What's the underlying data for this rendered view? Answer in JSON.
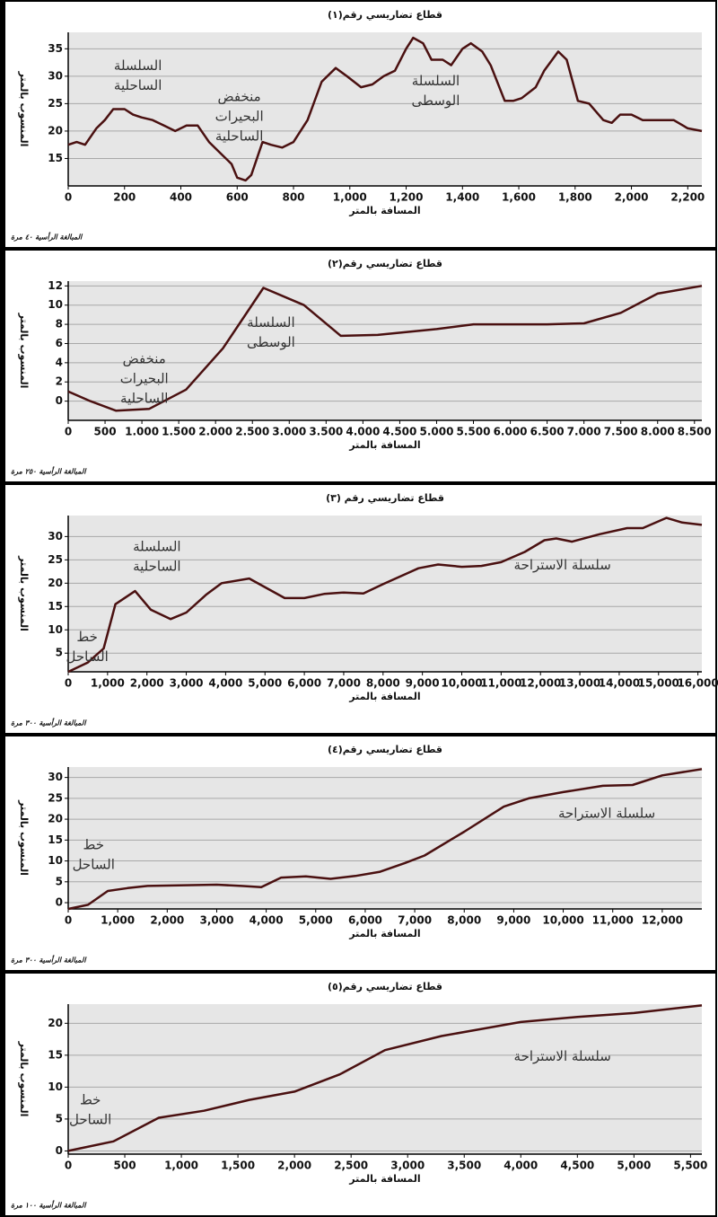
{
  "chart_data": [
    {
      "type": "line",
      "title": "قطاع تضاريسي رقم(١)",
      "y_label": "المنسوب بالمتر",
      "x_label": "المسافة بالمتر",
      "note": "المبالغة الرأسية ٤٠ مرة",
      "color": "#4a1010",
      "grid": true,
      "annotations": [
        [
          "السلسلة",
          "الساحلية"
        ],
        [
          "منخفض",
          "البحيرات",
          "الساحلية"
        ],
        [
          "السلسلة",
          "الوسطى"
        ]
      ],
      "x": [
        0,
        30,
        60,
        100,
        130,
        160,
        200,
        230,
        260,
        300,
        340,
        380,
        420,
        460,
        500,
        540,
        580,
        600,
        630,
        650,
        690,
        720,
        760,
        800,
        850,
        900,
        950,
        990,
        1040,
        1080,
        1120,
        1160,
        1200,
        1225,
        1260,
        1290,
        1330,
        1360,
        1400,
        1430,
        1470,
        1500,
        1550,
        1580,
        1610,
        1660,
        1690,
        1740,
        1770,
        1810,
        1850,
        1900,
        1930,
        1960,
        2000,
        2040,
        2100,
        2150,
        2200,
        2250
      ],
      "series": [
        {
          "values": [
            17.5,
            18,
            17.5,
            20.5,
            22,
            24,
            24,
            23,
            22.5,
            22,
            21,
            20,
            21,
            21,
            18,
            16,
            14,
            11.5,
            11,
            12,
            18,
            17.5,
            17,
            18,
            22,
            29,
            31.5,
            30,
            28,
            28.5,
            30,
            31,
            35,
            37,
            36,
            33,
            33,
            32,
            35,
            36,
            34.5,
            32,
            25.5,
            25.5,
            26,
            28,
            31,
            34.5,
            33,
            25.5,
            25,
            22,
            21.5,
            23,
            23,
            22,
            22,
            22,
            20.5,
            20
          ]
        }
      ],
      "xlim": [
        0,
        2250
      ],
      "ylim": [
        10,
        38
      ],
      "xticks": [
        0,
        200,
        400,
        600,
        800,
        {
          "value": 1000,
          "label": "1,000"
        },
        {
          "value": 1200,
          "label": "1,200"
        },
        {
          "value": 1400,
          "label": "1,400"
        },
        {
          "value": 1600,
          "label": "1,600"
        },
        {
          "value": 1800,
          "label": "1,800"
        },
        {
          "value": 2000,
          "label": "2,000"
        },
        {
          "value": 2200,
          "label": "2,200"
        }
      ],
      "yticks": [
        15,
        20,
        25,
        30,
        35
      ]
    },
    {
      "type": "line",
      "title": "قطاع تضاريسي رقم(٢)",
      "y_label": "المنسوب بالمتر",
      "x_label": "المسافة بالمتر",
      "note": "المبالغة الرأسية ٢٥٠ مرة",
      "color": "#4a1010",
      "grid": true,
      "annotations": [
        [
          "منخفض",
          "البحيرات",
          "الساحلية"
        ],
        [
          "السلسلة",
          "الوسطى"
        ]
      ],
      "x": [
        0,
        300,
        650,
        1100,
        1600,
        2100,
        2650,
        3200,
        3700,
        4200,
        5000,
        5500,
        6500,
        7000,
        7500,
        8000,
        8600
      ],
      "series": [
        {
          "values": [
            1,
            0,
            -1,
            -0.8,
            1.2,
            5.5,
            11.8,
            10,
            6.8,
            6.9,
            7.5,
            8,
            8,
            8.1,
            9.2,
            11.2,
            12
          ]
        }
      ],
      "xlim": [
        0,
        8600
      ],
      "ylim": [
        -2,
        12.5
      ],
      "xticks": [
        0,
        500,
        {
          "value": 1000,
          "label": "1.000"
        },
        {
          "value": 1500,
          "label": "1.500"
        },
        {
          "value": 2000,
          "label": "2.000"
        },
        {
          "value": 2500,
          "label": "2.500"
        },
        {
          "value": 3000,
          "label": "3.000"
        },
        {
          "value": 3500,
          "label": "3.500"
        },
        {
          "value": 4000,
          "label": "4.000"
        },
        {
          "value": 4500,
          "label": "4.500"
        },
        {
          "value": 5000,
          "label": "5.000"
        },
        {
          "value": 5500,
          "label": "5.500"
        },
        {
          "value": 6000,
          "label": "6.000"
        },
        {
          "value": 6500,
          "label": "6.500"
        },
        {
          "value": 7000,
          "label": "7.000"
        },
        {
          "value": 7500,
          "label": "7.500"
        },
        {
          "value": 8000,
          "label": "8.000"
        },
        {
          "value": 8500,
          "label": "8.500"
        }
      ],
      "yticks": [
        0,
        2,
        4,
        6,
        8,
        10,
        12
      ]
    },
    {
      "type": "line",
      "title": "قطاع تضاريسي رقم (٣)",
      "y_label": "المنسوب بالمتر",
      "x_label": "المسافة بالمتر",
      "note": "المبالغة الرأسية ٣٠٠ مرة",
      "color": "#4a1010",
      "grid": true,
      "annotations": [
        [
          "السلسلة",
          "الساحلية"
        ],
        [
          "خط",
          "الساحل"
        ],
        [
          "سلسلة الاستراحة"
        ]
      ],
      "x": [
        0,
        500,
        900,
        1200,
        1700,
        2100,
        2600,
        3000,
        3500,
        3900,
        4600,
        5500,
        6000,
        6500,
        7000,
        7500,
        8000,
        8900,
        9400,
        10000,
        10500,
        11000,
        11600,
        12100,
        12400,
        12800,
        13500,
        14200,
        14600,
        15200,
        15600,
        16100
      ],
      "series": [
        {
          "values": [
            1,
            3,
            6,
            15.5,
            18.3,
            14.3,
            12.3,
            13.7,
            17.5,
            20,
            21,
            16.8,
            16.8,
            17.7,
            18,
            17.8,
            19.8,
            23.2,
            24,
            23.5,
            23.7,
            24.5,
            26.7,
            29.2,
            29.6,
            28.9,
            30.5,
            31.8,
            31.8,
            34,
            33,
            32.5
          ]
        }
      ],
      "xlim": [
        0,
        16100
      ],
      "ylim": [
        1,
        34.5
      ],
      "xticks": [
        0,
        {
          "value": 1000,
          "label": "1,000"
        },
        {
          "value": 2000,
          "label": "2,000"
        },
        {
          "value": 3000,
          "label": "3,000"
        },
        {
          "value": 4000,
          "label": "4,000"
        },
        {
          "value": 5000,
          "label": "5,000"
        },
        {
          "value": 6000,
          "label": "6,000"
        },
        {
          "value": 7000,
          "label": "7,000"
        },
        {
          "value": 8000,
          "label": "8,000"
        },
        {
          "value": 9000,
          "label": "9,000"
        },
        {
          "value": 10000,
          "label": "10,000"
        },
        {
          "value": 11000,
          "label": "11,000"
        },
        {
          "value": 12000,
          "label": "12,000"
        },
        {
          "value": 13000,
          "label": "13,000"
        },
        {
          "value": 14000,
          "label": "14,000"
        },
        {
          "value": 15000,
          "label": "15,000"
        },
        {
          "value": 16000,
          "label": "16,000"
        }
      ],
      "yticks": [
        5,
        10,
        15,
        20,
        25,
        30
      ]
    },
    {
      "type": "line",
      "title": "قطاع تضاريسي رقم(٤)",
      "y_label": "المنسوب بالمتر",
      "x_label": "المسافة بالمتر",
      "note": "المبالغة الرأسية ٣٠٠ مرة",
      "color": "#4a1010",
      "grid": true,
      "annotations": [
        [
          "خط",
          "الساحل"
        ],
        [
          "سلسلة الاستراحة"
        ]
      ],
      "x": [
        0,
        400,
        800,
        1200,
        1600,
        3000,
        3500,
        3900,
        4300,
        4800,
        5300,
        5800,
        6300,
        6800,
        7200,
        8000,
        8800,
        9300,
        10000,
        10800,
        11400,
        12000,
        12800
      ],
      "series": [
        {
          "values": [
            -1.5,
            -0.5,
            2.8,
            3.5,
            4,
            4.3,
            4,
            3.7,
            6,
            6.3,
            5.7,
            6.4,
            7.4,
            9.5,
            11.3,
            17,
            23,
            25,
            26.5,
            28,
            28.2,
            30.5,
            32
          ]
        }
      ],
      "xlim": [
        0,
        12800
      ],
      "ylim": [
        -1.5,
        32.5
      ],
      "xticks": [
        0,
        {
          "value": 1000,
          "label": "1,000"
        },
        {
          "value": 2000,
          "label": "2,000"
        },
        {
          "value": 3000,
          "label": "3,000"
        },
        {
          "value": 4000,
          "label": "4,000"
        },
        {
          "value": 5000,
          "label": "5,000"
        },
        {
          "value": 6000,
          "label": "6,000"
        },
        {
          "value": 7000,
          "label": "7,000"
        },
        {
          "value": 8000,
          "label": "8,000"
        },
        {
          "value": 9000,
          "label": "9,000"
        },
        {
          "value": 10000,
          "label": "10,000"
        },
        {
          "value": 11000,
          "label": "11,000"
        },
        {
          "value": 12000,
          "label": "12,000"
        }
      ],
      "yticks": [
        0,
        5,
        10,
        15,
        20,
        25,
        30
      ]
    },
    {
      "type": "line",
      "title": "قطاع تضاريسي رقم(٥)",
      "y_label": "المنسوب بالمتر",
      "x_label": "المسافة بالمتر",
      "note": "المبالغة الرأسية ١٠٠ مرة",
      "color": "#4a1010",
      "grid": true,
      "annotations": [
        [
          "خط",
          "الساحل"
        ],
        [
          "سلسلة الاستراحة"
        ]
      ],
      "x": [
        0,
        400,
        800,
        1200,
        1600,
        2000,
        2400,
        2800,
        3300,
        4000,
        4500,
        5000,
        5600
      ],
      "series": [
        {
          "values": [
            0,
            1.5,
            5.2,
            6.3,
            8,
            9.3,
            12,
            15.8,
            18,
            20.2,
            21,
            21.6,
            22.8
          ]
        }
      ],
      "xlim": [
        0,
        5600
      ],
      "ylim": [
        -0.5,
        23
      ],
      "xticks": [
        0,
        500,
        {
          "value": 1000,
          "label": "1,000"
        },
        {
          "value": 1500,
          "label": "1,500"
        },
        {
          "value": 2000,
          "label": "2,000"
        },
        {
          "value": 2500,
          "label": "2,500"
        },
        {
          "value": 3000,
          "label": "3,000"
        },
        {
          "value": 3500,
          "label": "3,500"
        },
        {
          "value": 4000,
          "label": "4,000"
        },
        {
          "value": 4500,
          "label": "4,500"
        },
        {
          "value": 5000,
          "label": "5,000"
        },
        {
          "value": 5500,
          "label": "5,500"
        }
      ],
      "yticks": [
        0,
        5,
        10,
        15,
        20
      ]
    }
  ]
}
